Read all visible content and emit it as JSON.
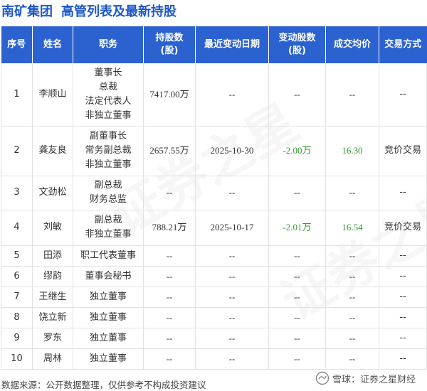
{
  "header": {
    "company": "南矿集团",
    "subtitle": "高管列表及最新持股"
  },
  "table": {
    "headers": {
      "index": "序号",
      "name": "姓名",
      "position": "职务",
      "shares_line1": "持股数",
      "shares_line2": "(股)",
      "date": "最近变动日期",
      "change_line1": "变动股数",
      "change_line2": "(股)",
      "price": "成交均价",
      "method": "交易方式"
    },
    "rows": [
      {
        "index": "1",
        "name": "李顺山",
        "positions": [
          "董事长",
          "总裁",
          "法定代表人",
          "非独立董事"
        ],
        "shares": "7417.00万",
        "date": "--",
        "change": "--",
        "price": "--",
        "method": "--"
      },
      {
        "index": "2",
        "name": "龚友良",
        "positions": [
          "副董事长",
          "常务副总裁",
          "非独立董事"
        ],
        "shares": "2657.55万",
        "date": "2025-10-30",
        "change": "-2.00万",
        "price": "16.30",
        "method": "竞价交易"
      },
      {
        "index": "3",
        "name": "文劲松",
        "positions": [
          "副总裁",
          "财务总监"
        ],
        "shares": "--",
        "date": "--",
        "change": "--",
        "price": "--",
        "method": "--"
      },
      {
        "index": "4",
        "name": "刘敏",
        "positions": [
          "副总裁",
          "非独立董事"
        ],
        "shares": "788.21万",
        "date": "2025-10-17",
        "change": "-2.01万",
        "price": "16.54",
        "method": "竞价交易"
      },
      {
        "index": "5",
        "name": "田添",
        "positions": [
          "职工代表董事"
        ],
        "shares": "--",
        "date": "--",
        "change": "--",
        "price": "--",
        "method": "--"
      },
      {
        "index": "6",
        "name": "缪韵",
        "positions": [
          "董事会秘书"
        ],
        "shares": "--",
        "date": "--",
        "change": "--",
        "price": "--",
        "method": "--"
      },
      {
        "index": "7",
        "name": "王继生",
        "positions": [
          "独立董事"
        ],
        "shares": "--",
        "date": "--",
        "change": "--",
        "price": "--",
        "method": "--"
      },
      {
        "index": "8",
        "name": "饶立新",
        "positions": [
          "独立董事"
        ],
        "shares": "--",
        "date": "--",
        "change": "--",
        "price": "--",
        "method": "--"
      },
      {
        "index": "9",
        "name": "罗东",
        "positions": [
          "独立董事"
        ],
        "shares": "--",
        "date": "--",
        "change": "--",
        "price": "--",
        "method": "--"
      },
      {
        "index": "10",
        "name": "周林",
        "positions": [
          "独立董事"
        ],
        "shares": "--",
        "date": "--",
        "change": "--",
        "price": "--",
        "method": "--"
      }
    ]
  },
  "footer": {
    "source": "数据来源：公开数据整理，仅供参考不构成投资建议",
    "logo_text": "雪球：证券之星财经",
    "logo_icon": "snowball-icon"
  },
  "watermark_text": "证券之星",
  "colors": {
    "accent": "#1e57c7",
    "header_bg": "#2b62d0",
    "positive_change": "#2f9b2f"
  }
}
